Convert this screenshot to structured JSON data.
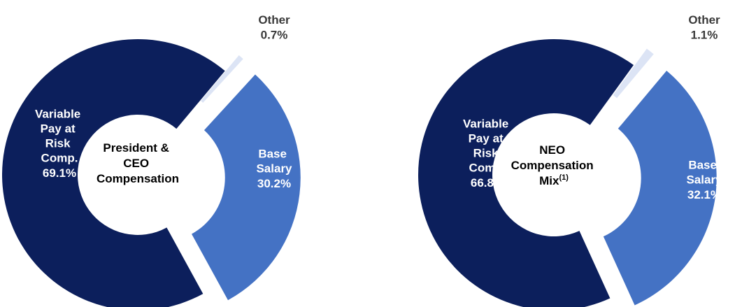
{
  "chart_data": [
    {
      "type": "pie",
      "center_label": "President & CEO Compensation",
      "categories": [
        "Other",
        "Base Salary",
        "Variable Pay at Risk Comp."
      ],
      "values": [
        0.7,
        30.2,
        69.1
      ],
      "value_labels": [
        "0.7%",
        "30.2%",
        "69.1%"
      ],
      "colors": [
        "#dce4f5",
        "#4472c4",
        "#0c1f5c"
      ]
    },
    {
      "type": "pie",
      "center_label": "NEO Compensation Mix",
      "center_label_sup": "(1)",
      "categories": [
        "Other",
        "Base Salary",
        "Variable Pay at Risk Comp."
      ],
      "values": [
        1.1,
        32.1,
        66.8
      ],
      "value_labels": [
        "1.1%",
        "32.1%",
        "66.8%"
      ],
      "colors": [
        "#dce4f5",
        "#4472c4",
        "#0c1f5c"
      ]
    }
  ]
}
